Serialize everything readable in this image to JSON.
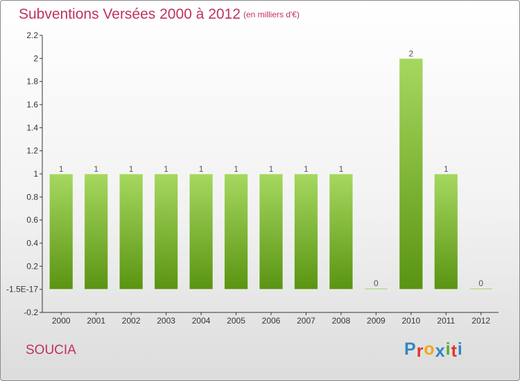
{
  "title": "Subventions Versées 2000 à 2012",
  "subtitle": "(en milliers d'€)",
  "commune": "SOUCIA",
  "logo": {
    "letters": [
      "P",
      "r",
      "o",
      "x",
      "i",
      "t",
      "i"
    ]
  },
  "colors": {
    "title": "#c0325a",
    "bar_light": "#a6d860",
    "bar_dark": "#5a9412",
    "axis": "#333333",
    "logo_letters": [
      "#2e86c8",
      "#e4332c",
      "#f0a81c",
      "#2e86c8",
      "#5aab2c",
      "#e4332c",
      "#2e86c8"
    ]
  },
  "chart_data": {
    "type": "bar",
    "categories": [
      "2000",
      "2001",
      "2002",
      "2003",
      "2004",
      "2005",
      "2006",
      "2007",
      "2008",
      "2009",
      "2010",
      "2011",
      "2012"
    ],
    "values": [
      1,
      1,
      1,
      1,
      1,
      1,
      1,
      1,
      1,
      0,
      2,
      1,
      0
    ],
    "data_labels": [
      "1",
      "1",
      "1",
      "1",
      "1",
      "1",
      "1",
      "1",
      "1",
      "0",
      "2",
      "1",
      "0"
    ],
    "ylim": [
      -0.2,
      2.2
    ],
    "y_ticks": [
      -0.2,
      0,
      0.2,
      0.4,
      0.6,
      0.8,
      1,
      1.2,
      1.4,
      1.6,
      1.8,
      2,
      2.2
    ],
    "y_tick_labels": [
      "-0.2",
      "-1.5E-17",
      "0.2",
      "0.4",
      "0.6",
      "0.8",
      "1",
      "1.2",
      "1.4",
      "1.6",
      "1.8",
      "2",
      "2.2"
    ],
    "grid": false,
    "xlabel": "",
    "ylabel": ""
  }
}
